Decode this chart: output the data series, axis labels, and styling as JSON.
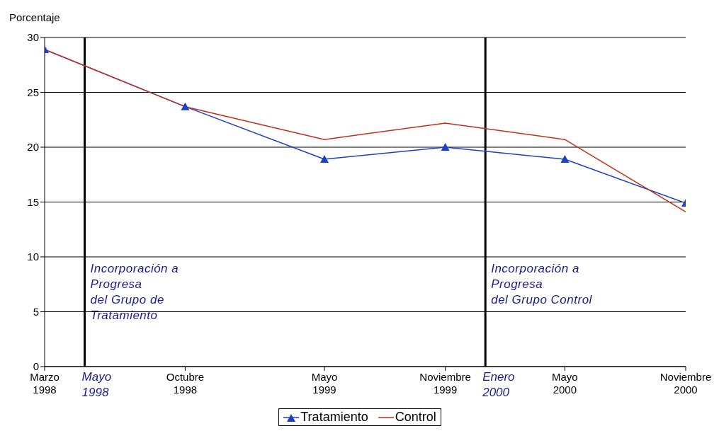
{
  "chart_data": {
    "type": "line",
    "ylabel": "Porcentaje",
    "x": [
      "1998-03",
      "1998-10",
      "1999-05",
      "1999-11",
      "2000-05",
      "2000-11"
    ],
    "xlim": [
      "1998-03",
      "2000-11"
    ],
    "xticks": [
      {
        "value": "1998-03",
        "label": "Marzo\n1998"
      },
      {
        "value": "1998-10",
        "label": "Octubre\n1998"
      },
      {
        "value": "1999-05",
        "label": "Mayo\n1999"
      },
      {
        "value": "1999-11",
        "label": "Noviembre\n1999"
      },
      {
        "value": "2000-05",
        "label": "Mayo\n2000"
      },
      {
        "value": "2000-11",
        "label": "Noviembre\n2000"
      }
    ],
    "ylim": [
      0,
      30
    ],
    "yticks": [
      0,
      5,
      10,
      15,
      20,
      25,
      30
    ],
    "series": [
      {
        "name": "Tratamiento",
        "color": "#1c3fc4",
        "marker": "triangle",
        "values": [
          28.9,
          23.7,
          18.9,
          20.0,
          18.9,
          14.9
        ]
      },
      {
        "name": "Control",
        "color": "#c0301a",
        "marker": "none",
        "values": [
          28.9,
          23.7,
          20.7,
          22.2,
          20.7,
          14.1
        ]
      }
    ],
    "ref_lines": [
      {
        "axis": "x",
        "value": "1998-05",
        "label": "Mayo\n1998",
        "color": "#000000"
      },
      {
        "axis": "x",
        "value": "2000-01",
        "label": "Enero\n2000",
        "color": "#000000"
      }
    ],
    "annotations": [
      "Incorporación a\nProgresa\ndel Grupo de\nTratamiento",
      "Incorporación a\nProgresa\ndel Grupo Control"
    ],
    "grid": "y",
    "legend": "bottom",
    "line_style": "solid"
  }
}
